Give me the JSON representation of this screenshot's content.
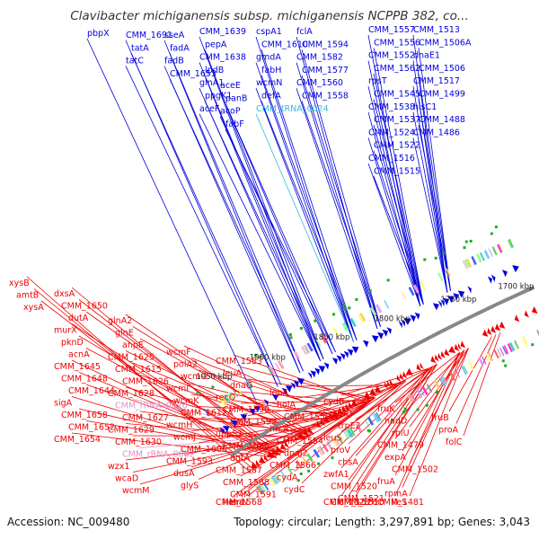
{
  "title": "Clavibacter michiganensis subsp. michiganensis NCPPB 382, co...",
  "accession": "Accession: NC_009480",
  "summary": "Topology: circular; Length: 3,297,891 bp; Genes: 3,043",
  "colors": {
    "forward_gene": "#0000dd",
    "reverse_gene": "#ee0000",
    "rna": "#e090c8",
    "rna_cyan": "#33bbdd",
    "backbone": "#888888",
    "marker": "#22aa22"
  },
  "kbp_ticks": [
    "1950 kbp",
    "1900 kbp",
    "1850 kbp",
    "1800 kbp",
    "1750 kbp",
    "1700 kbp"
  ],
  "forward_labels": [
    {
      "text": "pbpX",
      "kind": "gene"
    },
    {
      "text": "CMM_1691",
      "kind": "gene"
    },
    {
      "text": "tatA",
      "kind": "gene"
    },
    {
      "text": "tatC",
      "kind": "gene"
    },
    {
      "text": "sseA",
      "kind": "gene"
    },
    {
      "text": "fadA",
      "kind": "gene"
    },
    {
      "text": "fadB",
      "kind": "gene"
    },
    {
      "text": "CMM_1653",
      "kind": "gene"
    },
    {
      "text": "CMM_1639",
      "kind": "gene"
    },
    {
      "text": "pepA",
      "kind": "gene"
    },
    {
      "text": "CMM_1638",
      "kind": "gene"
    },
    {
      "text": "lpdB",
      "kind": "gene"
    },
    {
      "text": "glnA1",
      "kind": "gene"
    },
    {
      "text": "ppgK1",
      "kind": "gene"
    },
    {
      "text": "aceF",
      "kind": "gene"
    },
    {
      "text": "aceE",
      "kind": "gene"
    },
    {
      "text": "panB",
      "kind": "gene"
    },
    {
      "text": "acoP",
      "kind": "gene"
    },
    {
      "text": "fabF",
      "kind": "gene"
    },
    {
      "text": "cspA1",
      "kind": "gene"
    },
    {
      "text": "CMM_1610",
      "kind": "gene"
    },
    {
      "text": "gmdA",
      "kind": "gene"
    },
    {
      "text": "fabH",
      "kind": "gene"
    },
    {
      "text": "wcmN",
      "kind": "gene"
    },
    {
      "text": "defA",
      "kind": "gene"
    },
    {
      "text": "CMM_tRNA_0024",
      "kind": "rna"
    },
    {
      "text": "fclA",
      "kind": "gene"
    },
    {
      "text": "CMM_1594",
      "kind": "gene"
    },
    {
      "text": "CMM_1582",
      "kind": "gene"
    },
    {
      "text": "CMM_1577",
      "kind": "gene"
    },
    {
      "text": "CMM_1560",
      "kind": "gene"
    },
    {
      "text": "CMM_1558",
      "kind": "gene"
    },
    {
      "text": "CMM_1557",
      "kind": "gene"
    },
    {
      "text": "CMM_1556",
      "kind": "gene"
    },
    {
      "text": "CMM_1552",
      "kind": "gene"
    },
    {
      "text": "CMM_1562",
      "kind": "gene"
    },
    {
      "text": "rpsT",
      "kind": "gene"
    },
    {
      "text": "CMM_1545",
      "kind": "gene"
    },
    {
      "text": "CMM_1538",
      "kind": "gene"
    },
    {
      "text": "CMM_1537",
      "kind": "gene"
    },
    {
      "text": "CMM_1524",
      "kind": "gene"
    },
    {
      "text": "CMM_1522",
      "kind": "gene"
    },
    {
      "text": "CMM_1516",
      "kind": "gene"
    },
    {
      "text": "CMM_1515",
      "kind": "gene"
    },
    {
      "text": "CMM_1513",
      "kind": "gene"
    },
    {
      "text": "CMM_1506A",
      "kind": "gene"
    },
    {
      "text": "dnaE1",
      "kind": "gene"
    },
    {
      "text": "CMM_1506",
      "kind": "gene"
    },
    {
      "text": "CMM_1517",
      "kind": "gene"
    },
    {
      "text": "CMM_1499",
      "kind": "gene"
    },
    {
      "text": "hisC1",
      "kind": "gene"
    },
    {
      "text": "CMM_1488",
      "kind": "gene"
    },
    {
      "text": "CMM_1486",
      "kind": "gene"
    }
  ],
  "reverse_labels": [
    {
      "text": "xysB",
      "kind": "gene"
    },
    {
      "text": "amtB",
      "kind": "gene"
    },
    {
      "text": "xysA",
      "kind": "gene"
    },
    {
      "text": "dxsA",
      "kind": "gene"
    },
    {
      "text": "CMM_1650",
      "kind": "gene"
    },
    {
      "text": "dutA",
      "kind": "gene"
    },
    {
      "text": "murX",
      "kind": "gene"
    },
    {
      "text": "pknD",
      "kind": "gene"
    },
    {
      "text": "acnA",
      "kind": "gene"
    },
    {
      "text": "CMM_1645",
      "kind": "gene"
    },
    {
      "text": "CMM_1648",
      "kind": "gene"
    },
    {
      "text": "CMM_1644",
      "kind": "gene"
    },
    {
      "text": "sigA",
      "kind": "gene"
    },
    {
      "text": "CMM_1658",
      "kind": "gene"
    },
    {
      "text": "CMM_1652",
      "kind": "gene"
    },
    {
      "text": "CMM_1654",
      "kind": "gene"
    },
    {
      "text": "glnA2",
      "kind": "gene"
    },
    {
      "text": "glnE",
      "kind": "gene"
    },
    {
      "text": "ahpE",
      "kind": "gene"
    },
    {
      "text": "CMM_1625",
      "kind": "gene"
    },
    {
      "text": "CMM_1615",
      "kind": "gene"
    },
    {
      "text": "CMM_1626",
      "kind": "gene"
    },
    {
      "text": "CMM_1628",
      "kind": "gene"
    },
    {
      "text": "CMM_rRNA_0026",
      "kind": "rna"
    },
    {
      "text": "CMM_1627",
      "kind": "gene"
    },
    {
      "text": "CMM_1629",
      "kind": "gene"
    },
    {
      "text": "CMM_1630",
      "kind": "gene"
    },
    {
      "text": "CMM_rRNA_0002",
      "kind": "rna"
    },
    {
      "text": "wzx1",
      "kind": "gene"
    },
    {
      "text": "wcaD",
      "kind": "gene"
    },
    {
      "text": "wcmM",
      "kind": "gene"
    },
    {
      "text": "wcmF",
      "kind": "gene"
    },
    {
      "text": "polA2",
      "kind": "gene"
    },
    {
      "text": "wcmG",
      "kind": "gene"
    },
    {
      "text": "wcmI",
      "kind": "gene"
    },
    {
      "text": "wcmK",
      "kind": "gene"
    },
    {
      "text": "CMM_1612A",
      "kind": "gene"
    },
    {
      "text": "wcmH",
      "kind": "gene"
    },
    {
      "text": "wcmJ",
      "kind": "gene"
    },
    {
      "text": "CMM_1606",
      "kind": "gene"
    },
    {
      "text": "CMM_1593",
      "kind": "gene"
    },
    {
      "text": "dusA",
      "kind": "gene"
    },
    {
      "text": "glyS",
      "kind": "gene"
    },
    {
      "text": "CMM_1583",
      "kind": "gene"
    },
    {
      "text": "leuA",
      "kind": "gene"
    },
    {
      "text": "dnaG",
      "kind": "gene"
    },
    {
      "text": "recO",
      "kind": "gene"
    },
    {
      "text": "CMM_1590",
      "kind": "gene"
    },
    {
      "text": "CMM_1592",
      "kind": "gene"
    },
    {
      "text": "uppS1",
      "kind": "gene"
    },
    {
      "text": "CMM_1580",
      "kind": "gene"
    },
    {
      "text": "dgtA",
      "kind": "gene"
    },
    {
      "text": "CMM_1587",
      "kind": "gene"
    },
    {
      "text": "CMM_1588",
      "kind": "gene"
    },
    {
      "text": "CMM_1591",
      "kind": "gene"
    },
    {
      "text": "CMM_1568",
      "kind": "gene"
    },
    {
      "text": "hemN",
      "kind": "gene"
    },
    {
      "text": "era",
      "kind": "gene"
    },
    {
      "text": "lepA",
      "kind": "gene"
    },
    {
      "text": "holA",
      "kind": "gene"
    },
    {
      "text": "CMM_1559",
      "kind": "gene"
    },
    {
      "text": "hrcA",
      "kind": "gene"
    },
    {
      "text": "CMM_1554",
      "kind": "gene"
    },
    {
      "text": "dnaJ2",
      "kind": "gene"
    },
    {
      "text": "CMM_1566",
      "kind": "gene"
    },
    {
      "text": "cydA",
      "kind": "gene"
    },
    {
      "text": "cydC",
      "kind": "gene"
    },
    {
      "text": "cydB",
      "kind": "gene"
    },
    {
      "text": "cydD",
      "kind": "gene"
    },
    {
      "text": "trpE2",
      "kind": "gene"
    },
    {
      "text": "leuS",
      "kind": "gene"
    },
    {
      "text": "proV",
      "kind": "gene"
    },
    {
      "text": "chsA",
      "kind": "gene"
    },
    {
      "text": "zwfA1",
      "kind": "gene"
    },
    {
      "text": "CMM_1520",
      "kind": "gene"
    },
    {
      "text": "CMM_1521",
      "kind": "gene"
    },
    {
      "text": "CMM_1523",
      "kind": "gene"
    },
    {
      "text": "CMM_1526",
      "kind": "gene"
    },
    {
      "text": "CMM_1510",
      "kind": "gene"
    },
    {
      "text": "fruK",
      "kind": "gene"
    },
    {
      "text": "nadD",
      "kind": "gene"
    },
    {
      "text": "rplU",
      "kind": "gene"
    },
    {
      "text": "CMM_1479",
      "kind": "gene"
    },
    {
      "text": "expA",
      "kind": "gene"
    },
    {
      "text": "CMM_1502",
      "kind": "gene"
    },
    {
      "text": "fruA",
      "kind": "gene"
    },
    {
      "text": "rpmA",
      "kind": "gene"
    },
    {
      "text": "ileS",
      "kind": "gene"
    },
    {
      "text": "CMM_1481",
      "kind": "gene"
    },
    {
      "text": "fruB",
      "kind": "gene"
    },
    {
      "text": "proA",
      "kind": "gene"
    },
    {
      "text": "folC",
      "kind": "gene"
    }
  ]
}
